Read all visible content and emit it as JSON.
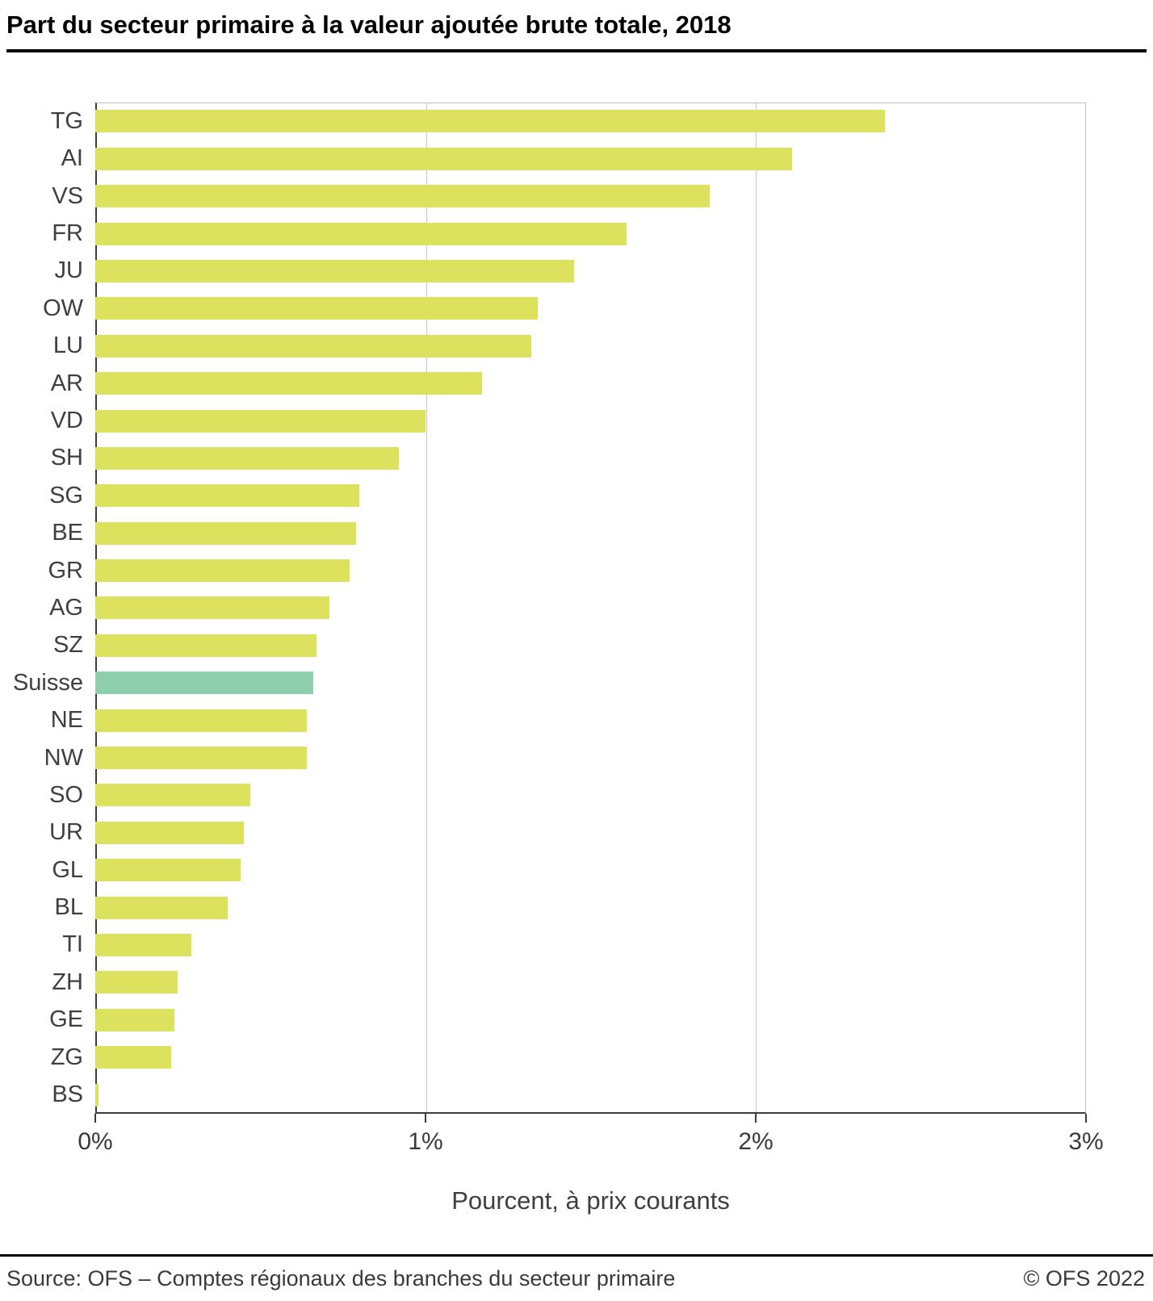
{
  "title": "Part du secteur primaire à la valeur ajoutée brute totale, 2018",
  "xlabel": "Pourcent, à prix courants",
  "footer": {
    "source": "Source: OFS – Comptes régionaux des branches du secteur primaire",
    "copyright": "© OFS 2022"
  },
  "colors": {
    "bar": "#dce15e",
    "highlight": "#8fcfad",
    "grid": "#c6c6c6",
    "axis": "#3d3d3d"
  },
  "chart_data": {
    "type": "bar",
    "orientation": "horizontal",
    "title": "Part du secteur primaire à la valeur ajoutée brute totale, 2018",
    "xlabel": "Pourcent, à prix courants",
    "ylabel": "",
    "xlim": [
      0,
      3
    ],
    "x_ticks": [
      "0%",
      "1%",
      "2%",
      "3%"
    ],
    "grid": true,
    "legend": false,
    "highlight_category": "Suisse",
    "categories": [
      "TG",
      "AI",
      "VS",
      "FR",
      "JU",
      "OW",
      "LU",
      "AR",
      "VD",
      "SH",
      "SG",
      "BE",
      "GR",
      "AG",
      "SZ",
      "Suisse",
      "NE",
      "NW",
      "SO",
      "UR",
      "GL",
      "BL",
      "TI",
      "ZH",
      "GE",
      "ZG",
      "BS"
    ],
    "values": [
      2.39,
      2.11,
      1.86,
      1.61,
      1.45,
      1.34,
      1.32,
      1.17,
      1.0,
      0.92,
      0.8,
      0.79,
      0.77,
      0.71,
      0.67,
      0.66,
      0.64,
      0.64,
      0.47,
      0.45,
      0.44,
      0.4,
      0.29,
      0.25,
      0.24,
      0.23,
      0.01
    ]
  }
}
